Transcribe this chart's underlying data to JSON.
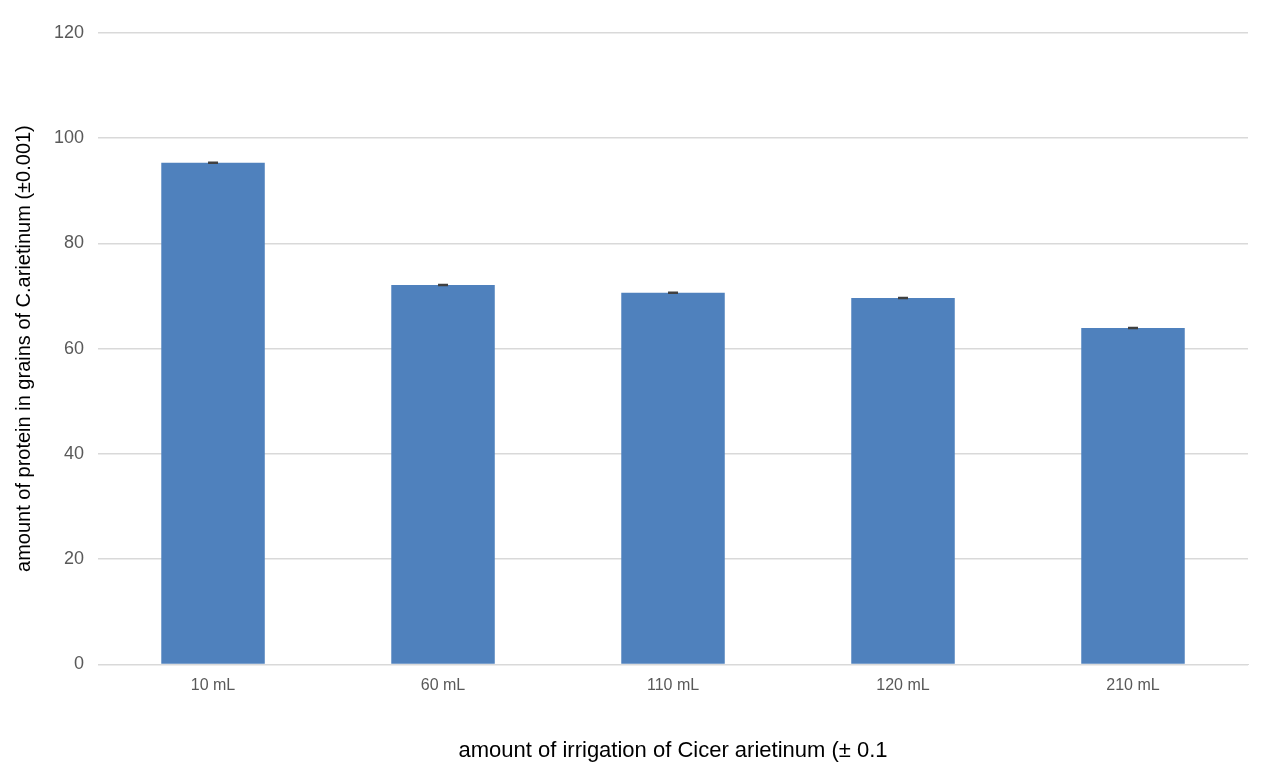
{
  "chart_data": {
    "type": "bar",
    "xlabel": "amount of irrigation of Cicer arietinum (± 0.1",
    "ylabel": "amount of protein in grains of C.arietinum (±0.001)",
    "categories": [
      "10 mL",
      "60 mL",
      "110 mL",
      "120 mL",
      "210 mL"
    ],
    "values": [
      95.3,
      72.1,
      70.6,
      69.6,
      63.9
    ],
    "errors": [
      0.1,
      0.1,
      0.1,
      0.1,
      0.1
    ],
    "color": "#4f81bd",
    "ylim": [
      0,
      120
    ],
    "yticks": [
      0,
      20,
      40,
      60,
      80,
      100,
      120
    ],
    "grid": "y"
  }
}
